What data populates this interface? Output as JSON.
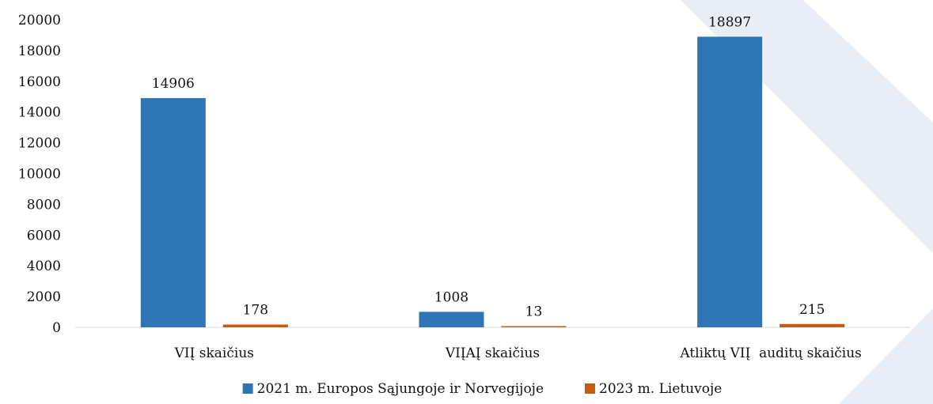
{
  "chart_data": {
    "type": "bar",
    "title": "",
    "xlabel": "",
    "ylabel": "",
    "categories": [
      "VIĮ skaičius",
      "VIĮAĮ skaičius",
      "Atliktų VIĮ  auditų skaičius"
    ],
    "series": [
      {
        "name": "2021 m. Europos Sąjungoje ir Norvegijoje",
        "values": [
          14906,
          1008,
          18897
        ],
        "color": "#2E75B6"
      },
      {
        "name": "2023 m. Lietuvoje",
        "values": [
          178,
          13,
          215
        ],
        "color": "#C55A11"
      }
    ],
    "ylim": [
      0,
      20000
    ],
    "yticks": [
      0,
      2000,
      4000,
      6000,
      8000,
      10000,
      12000,
      14000,
      16000,
      18000,
      20000
    ],
    "grid": false,
    "legend_position": "bottom",
    "background_decoration_color": "#E9EDF5"
  }
}
